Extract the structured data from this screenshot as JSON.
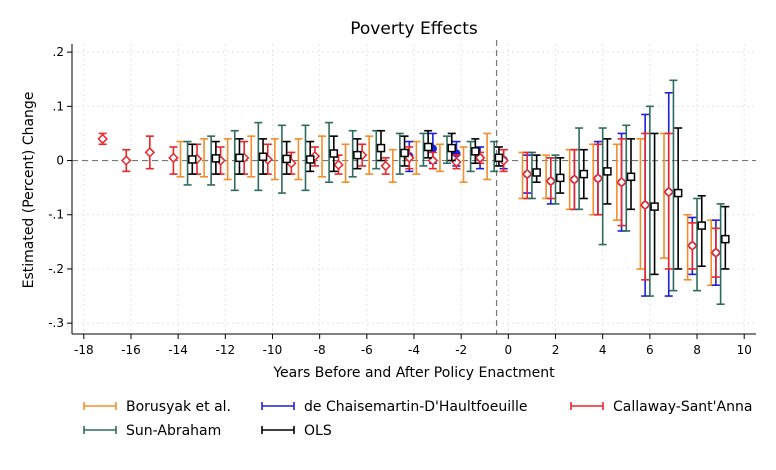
{
  "chart_data": {
    "type": "scatter",
    "title": "Poverty Effects",
    "xlabel": "Years Before and After Policy Enactment",
    "ylabel": "Estimated (Percent) Change",
    "xlim": [
      -18.5,
      10.5
    ],
    "ylim": [
      -0.32,
      0.215
    ],
    "xticks": [
      -18,
      -16,
      -14,
      -12,
      -10,
      -8,
      -6,
      -4,
      -2,
      0,
      2,
      4,
      6,
      8,
      10
    ],
    "xtick_labels": [
      "-18",
      "-16",
      "-14",
      "-12",
      "-10",
      "-8",
      "-6",
      "-4",
      "-2",
      "0",
      "2",
      "4",
      "6",
      "8",
      "10"
    ],
    "yticks": [
      -0.3,
      -0.2,
      -0.1,
      0,
      0.1,
      0.2
    ],
    "ytick_labels": [
      "-.3",
      "-.2",
      "-.1",
      "0",
      ".1",
      ".2"
    ],
    "reference_lines": {
      "y": 0,
      "x": -0.5,
      "style": "dashed"
    },
    "grid": "horizontal and vertical, dotted light gray",
    "legend_position": "bottom",
    "series": [
      {
        "name": "Borusyak et al.",
        "color": "#f28e2b",
        "marker": "none",
        "x": [
          -13.9,
          -12.9,
          -11.9,
          -10.9,
          -9.9,
          -8.9,
          -7.9,
          -6.9,
          -5.9,
          -4.9,
          -3.9,
          -2.9,
          -1.9,
          -0.9,
          0.6,
          1.6,
          2.6,
          3.6,
          4.6,
          5.6,
          6.6,
          7.6,
          8.6
        ],
        "y": [
          0.005,
          0.004,
          0.003,
          0.007,
          0.003,
          0.002,
          0.008,
          -0.005,
          0.009,
          -0.012,
          0.005,
          0.003,
          -0.01,
          0.002,
          -0.025,
          -0.03,
          -0.035,
          -0.035,
          -0.04,
          -0.08,
          -0.065,
          -0.16,
          -0.17
        ],
        "lower": [
          -0.03,
          -0.03,
          -0.035,
          -0.03,
          -0.035,
          -0.035,
          -0.03,
          -0.04,
          -0.025,
          -0.04,
          -0.025,
          -0.02,
          -0.04,
          -0.035,
          -0.07,
          -0.07,
          -0.09,
          -0.1,
          -0.11,
          -0.2,
          -0.18,
          -0.22,
          -0.23
        ],
        "upper": [
          0.035,
          0.04,
          0.04,
          0.045,
          0.04,
          0.04,
          0.045,
          0.03,
          0.045,
          0.02,
          0.035,
          0.03,
          0.025,
          0.05,
          0.015,
          0.01,
          0.02,
          0.03,
          0.03,
          0.04,
          0.05,
          -0.1,
          -0.11
        ]
      },
      {
        "name": "de Chaisemartin-D'Haultfoeuille",
        "color": "#1f1fd6",
        "marker": "circle-filled",
        "x": [
          -4.2,
          -3.2,
          -2.2,
          -1.2,
          -0.2,
          0.8,
          1.8,
          2.8,
          3.8,
          4.8,
          5.8,
          6.8,
          7.8,
          8.8
        ],
        "y": [
          0.008,
          0.022,
          0.013,
          0.005,
          0.001,
          -0.025,
          -0.038,
          -0.035,
          -0.033,
          -0.04,
          -0.082,
          -0.058,
          -0.157,
          -0.17
        ],
        "lower": [
          -0.02,
          -0.005,
          -0.01,
          -0.015,
          -0.015,
          -0.06,
          -0.08,
          -0.09,
          -0.1,
          -0.13,
          -0.25,
          -0.25,
          -0.21,
          -0.23
        ],
        "upper": [
          0.035,
          0.05,
          0.035,
          0.025,
          0.02,
          0.01,
          0.005,
          0.02,
          0.035,
          0.05,
          0.085,
          0.125,
          -0.105,
          -0.11
        ]
      },
      {
        "name": "Callaway-Sant'Anna",
        "color": "#e8272b",
        "marker": "diamond-hollow",
        "x": [
          -17.2,
          -16.2,
          -15.2,
          -14.2,
          -13.2,
          -12.2,
          -11.2,
          -10.2,
          -9.2,
          -8.2,
          -7.2,
          -6.2,
          -5.2,
          -4.2,
          -3.2,
          -2.2,
          -1.2,
          -0.2,
          0.8,
          1.8,
          2.8,
          3.8,
          4.8,
          5.8,
          6.8,
          7.8,
          8.8
        ],
        "y": [
          0.04,
          0.0,
          0.015,
          0.005,
          0.003,
          0.0,
          0.005,
          0.002,
          -0.005,
          0.008,
          -0.008,
          0.01,
          -0.01,
          0.005,
          0.0,
          -0.003,
          0.005,
          0.0,
          -0.025,
          -0.038,
          -0.035,
          -0.033,
          -0.04,
          -0.082,
          -0.058,
          -0.157,
          -0.17
        ],
        "lower": [
          0.03,
          -0.02,
          -0.015,
          -0.025,
          -0.025,
          -0.025,
          -0.025,
          -0.025,
          -0.025,
          -0.01,
          -0.025,
          -0.01,
          -0.025,
          -0.015,
          -0.015,
          -0.015,
          -0.005,
          -0.02,
          -0.07,
          -0.07,
          -0.09,
          -0.1,
          -0.12,
          -0.22,
          -0.2,
          -0.2,
          -0.215
        ],
        "upper": [
          0.05,
          0.02,
          0.045,
          0.025,
          0.03,
          0.025,
          0.035,
          0.03,
          0.015,
          0.025,
          0.01,
          0.03,
          0.005,
          0.025,
          0.015,
          0.01,
          0.015,
          0.02,
          0.015,
          0.005,
          0.02,
          0.03,
          0.04,
          0.05,
          0.05,
          -0.115,
          -0.125
        ]
      },
      {
        "name": "Sun-Abraham",
        "color": "#2e6b5e",
        "marker": "none",
        "x": [
          -13.6,
          -12.6,
          -11.6,
          -10.6,
          -9.6,
          -8.6,
          -7.6,
          -6.6,
          -5.6,
          -4.6,
          -3.6,
          -2.6,
          -1.6,
          -0.6,
          1.0,
          2.0,
          3.0,
          4.0,
          5.0,
          6.0,
          7.0,
          8.0,
          9.0
        ],
        "y": [
          0.0,
          0.0,
          0.0,
          0.005,
          0.0,
          0.005,
          0.01,
          0.005,
          0.02,
          0.015,
          0.015,
          0.02,
          0.01,
          0.01,
          -0.025,
          -0.035,
          -0.035,
          -0.035,
          -0.04,
          -0.082,
          -0.05,
          -0.155,
          -0.168
        ],
        "lower": [
          -0.045,
          -0.045,
          -0.055,
          -0.055,
          -0.06,
          -0.055,
          -0.04,
          -0.03,
          -0.015,
          -0.025,
          -0.01,
          -0.005,
          -0.02,
          -0.02,
          -0.07,
          -0.08,
          -0.09,
          -0.155,
          -0.13,
          -0.25,
          -0.24,
          -0.24,
          -0.265
        ],
        "upper": [
          0.035,
          0.045,
          0.055,
          0.07,
          0.065,
          0.065,
          0.07,
          0.055,
          0.055,
          0.05,
          0.05,
          0.045,
          0.035,
          0.035,
          0.015,
          0.01,
          0.06,
          0.06,
          0.065,
          0.1,
          0.148,
          -0.07,
          -0.08
        ]
      },
      {
        "name": "OLS",
        "color": "#000000",
        "marker": "square-hollow",
        "x": [
          -13.4,
          -12.4,
          -11.4,
          -10.4,
          -9.4,
          -8.4,
          -7.4,
          -6.4,
          -5.4,
          -4.4,
          -3.4,
          -2.4,
          -1.4,
          -0.4,
          1.2,
          2.2,
          3.2,
          4.2,
          5.2,
          6.2,
          7.2,
          8.2,
          9.2
        ],
        "y": [
          0.002,
          0.004,
          0.005,
          0.007,
          0.003,
          0.002,
          0.013,
          0.01,
          0.023,
          0.014,
          0.025,
          0.023,
          0.017,
          0.005,
          -0.022,
          -0.032,
          -0.025,
          -0.02,
          -0.03,
          -0.085,
          -0.06,
          -0.12,
          -0.145
        ],
        "lower": [
          -0.025,
          -0.025,
          -0.025,
          -0.025,
          -0.025,
          -0.02,
          -0.02,
          -0.015,
          0.0,
          -0.01,
          0.005,
          0.0,
          -0.005,
          -0.01,
          -0.04,
          -0.06,
          -0.07,
          -0.08,
          -0.09,
          -0.21,
          -0.2,
          -0.195,
          -0.2
        ],
        "upper": [
          0.03,
          0.035,
          0.04,
          0.04,
          0.035,
          0.035,
          0.045,
          0.04,
          0.055,
          0.045,
          0.055,
          0.05,
          0.04,
          0.025,
          0.01,
          0.005,
          0.02,
          0.04,
          0.04,
          0.05,
          0.06,
          -0.065,
          -0.085
        ]
      }
    ]
  }
}
